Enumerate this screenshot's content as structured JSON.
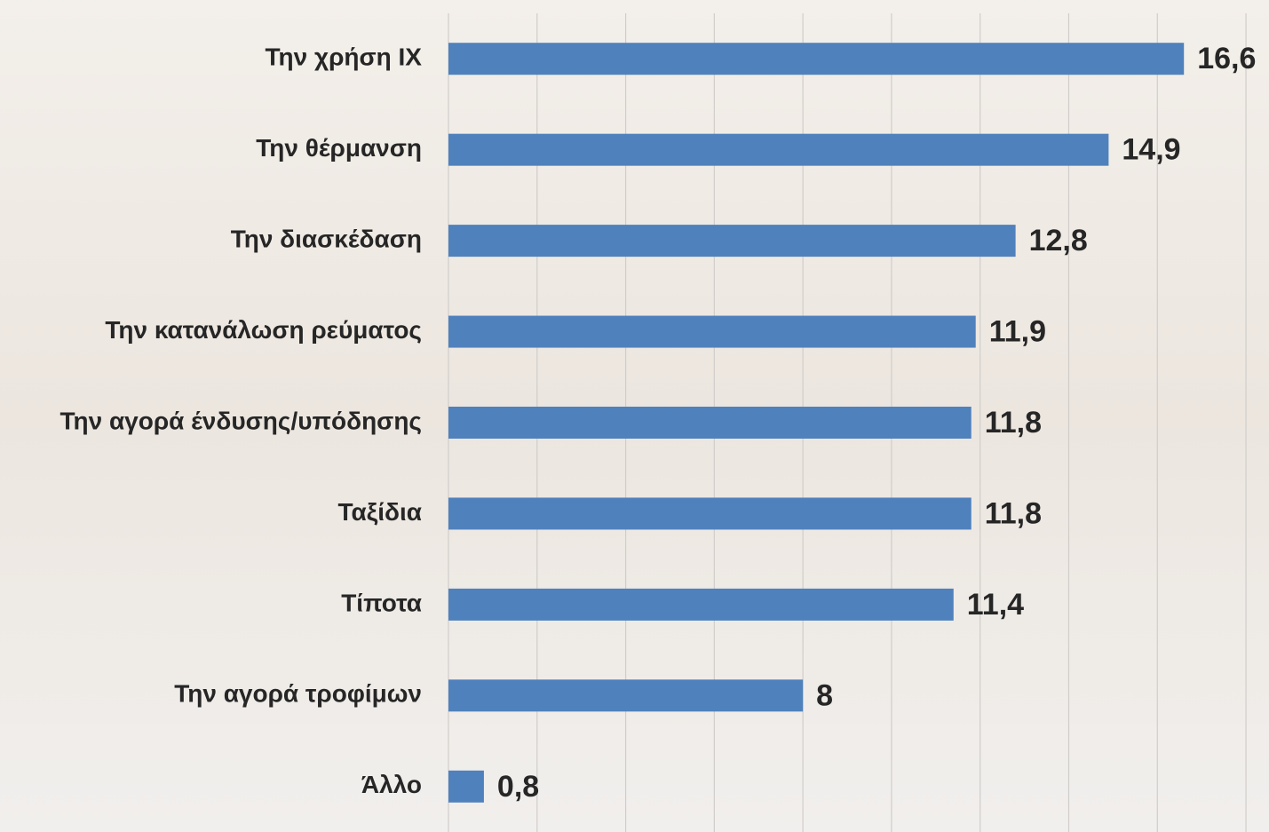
{
  "chart_data": {
    "type": "bar",
    "orientation": "horizontal",
    "categories": [
      "Την χρήση ΙΧ",
      "Την θέρμανση",
      "Την διασκέδαση",
      "Την κατανάλωση ρεύματος",
      "Την αγορά ένδυσης/υπόδησης",
      "Ταξίδια",
      "Τίποτα",
      "Την αγορά τροφίμων",
      "Άλλο"
    ],
    "values": [
      16.6,
      14.9,
      12.8,
      11.9,
      11.8,
      11.8,
      11.4,
      8,
      0.8
    ],
    "value_labels": [
      "16,6",
      "14,9",
      "12,8",
      "11,9",
      "11,8",
      "11,8",
      "11,4",
      "8",
      "0,8"
    ],
    "color": "#4f81bd",
    "xlim": [
      0,
      18.5
    ],
    "xticks": [
      0,
      2,
      4,
      6,
      8,
      10,
      12,
      14,
      16,
      18
    ],
    "grid": true
  }
}
